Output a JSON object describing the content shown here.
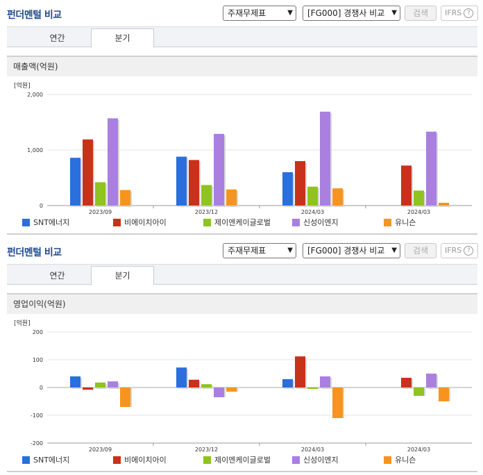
{
  "panels": [
    {
      "title": "펀더멘털 비교",
      "select1": "주재무제표",
      "select2": "[FG000] 경쟁사 비교",
      "search_label": "검색",
      "ifrs_label": "IFRS",
      "ifrs_help": "?",
      "tabs": [
        "연간",
        "분기"
      ],
      "active_tab": "분기",
      "subtitle": "매출액(억원)",
      "unit": "[억원]"
    },
    {
      "title": "펀더멘털 비교",
      "select1": "주재무제표",
      "select2": "[FG000] 경쟁사 비교",
      "search_label": "검색",
      "ifrs_label": "IFRS",
      "ifrs_help": "?",
      "tabs": [
        "연간",
        "분기"
      ],
      "active_tab": "분기",
      "subtitle": "영업이익(억원)",
      "unit": "[억원]"
    }
  ],
  "chart_data": [
    {
      "type": "bar",
      "title": "매출액(억원)",
      "ylabel": "[억원]",
      "categories": [
        "2023/09",
        "2023/12",
        "2024/03",
        "2024/03"
      ],
      "ylim": [
        0,
        2000
      ],
      "yticks": [
        0,
        1000,
        2000
      ],
      "ytick_labels": [
        "0",
        "1,000",
        "2,000"
      ],
      "grid": true,
      "legend_position": "bottom",
      "series": [
        {
          "name": "SNT에너지",
          "color": "#2a6fdb",
          "values": [
            860,
            880,
            600,
            null
          ]
        },
        {
          "name": "비에이치아이",
          "color": "#c8321a",
          "values": [
            1190,
            820,
            800,
            720
          ]
        },
        {
          "name": "제이엔케이글로벌",
          "color": "#8fc31f",
          "values": [
            420,
            370,
            340,
            270
          ]
        },
        {
          "name": "신성이엔지",
          "color": "#a97fe0",
          "values": [
            1570,
            1290,
            1690,
            1330
          ]
        },
        {
          "name": "유니슨",
          "color": "#f7941d",
          "values": [
            280,
            290,
            310,
            50
          ]
        }
      ]
    },
    {
      "type": "bar",
      "title": "영업이익(억원)",
      "ylabel": "[억원]",
      "categories": [
        "2023/09",
        "2023/12",
        "2024/03",
        "2024/03"
      ],
      "ylim": [
        -200,
        200
      ],
      "yticks": [
        -200,
        -100,
        0,
        100,
        200
      ],
      "ytick_labels": [
        "-200",
        "-100",
        "0",
        "100",
        "200"
      ],
      "grid": true,
      "legend_position": "bottom",
      "series": [
        {
          "name": "SNT에너지",
          "color": "#2a6fdb",
          "values": [
            40,
            72,
            30,
            null
          ]
        },
        {
          "name": "비에이치아이",
          "color": "#c8321a",
          "values": [
            -8,
            28,
            112,
            35
          ]
        },
        {
          "name": "제이엔케이글로벌",
          "color": "#8fc31f",
          "values": [
            18,
            12,
            -5,
            -30
          ]
        },
        {
          "name": "신성이엔지",
          "color": "#a97fe0",
          "values": [
            22,
            -35,
            40,
            50
          ]
        },
        {
          "name": "유니슨",
          "color": "#f7941d",
          "values": [
            -70,
            -15,
            -110,
            -50
          ]
        }
      ]
    }
  ]
}
